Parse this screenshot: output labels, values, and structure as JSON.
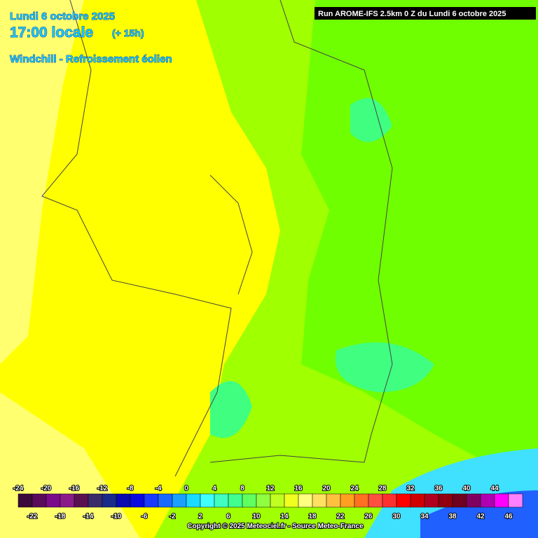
{
  "header": {
    "date": "Lundi 6 octobre 2025",
    "time": "17:00 locale",
    "offset": "(+ 15h)",
    "parameter": "Windchill - Refroissement éolien",
    "run": "Run AROME-IFS 2.5km 0 Z du Lundi 6 octobre 2025"
  },
  "legend": {
    "values": [
      -24,
      -22,
      -20,
      -18,
      -16,
      -14,
      -12,
      -10,
      -8,
      -6,
      -4,
      -2,
      0,
      2,
      4,
      6,
      8,
      10,
      12,
      14,
      16,
      18,
      20,
      22,
      24,
      26,
      28,
      30,
      32,
      34,
      36,
      38,
      40,
      42,
      44,
      46
    ],
    "colors": [
      "#3a0a3a",
      "#5a0a5a",
      "#7a0a8a",
      "#8a1a8a",
      "#5a1050",
      "#3a2a6a",
      "#1a2a8a",
      "#0a0ab0",
      "#0a0ae0",
      "#1a3aff",
      "#1a6aff",
      "#1aa0ff",
      "#1adaff",
      "#40ffff",
      "#40ffc0",
      "#40ff90",
      "#60ff60",
      "#90ff40",
      "#c0ff20",
      "#f0ff20",
      "#ffff80",
      "#ffe060",
      "#ffc040",
      "#ffa020",
      "#ff7020",
      "#ff5040",
      "#ff3030",
      "#ff0000",
      "#d00000",
      "#b00020",
      "#900010",
      "#700020",
      "#800060",
      "#b000b0",
      "#ff00ff",
      "#ff80ff"
    ]
  },
  "footer": {
    "copyright": "Copyright © 2025 Meteociel.fr - Source Meteo-France"
  }
}
